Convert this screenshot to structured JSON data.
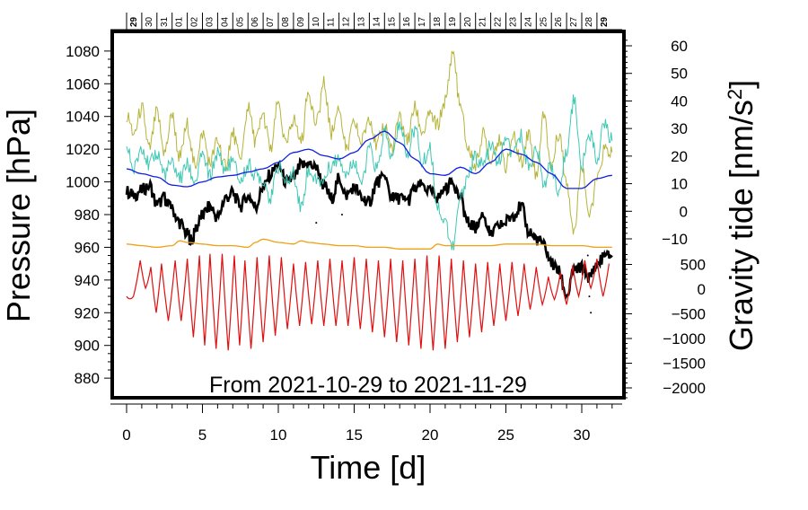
{
  "chart_data": {
    "type": "line",
    "title": "",
    "annotation": "From 2021-10-29 to 2021-11-29",
    "xlabel": "Time [d]",
    "ylabel_left": "Pressure [hPa]",
    "ylabel_right": "Gravity tide [nm/s2]",
    "ylabel_right_parts": {
      "base": "Gravity tide [nm/s",
      "sup": "2",
      "end": "]"
    },
    "xlim": [
      -1.0,
      33.0
    ],
    "ylim_left": [
      868,
      1092
    ],
    "x_ticks": [
      "0",
      "5",
      "10",
      "15",
      "20",
      "25",
      "30"
    ],
    "y_ticks_left": [
      "880",
      "900",
      "920",
      "940",
      "960",
      "980",
      "1000",
      "1020",
      "1040",
      "1060",
      "1080"
    ],
    "y_ticks_right_upper": [
      "-10",
      "0",
      "10",
      "20",
      "30",
      "40",
      "50",
      "60"
    ],
    "y_ticks_right_lower": [
      "-2000",
      "-1500",
      "-1000",
      "-500",
      "0",
      "500"
    ],
    "date_labels": [
      "29",
      "30",
      "31",
      "01",
      "02",
      "03",
      "04",
      "05",
      "06",
      "07",
      "08",
      "09",
      "10",
      "11",
      "12",
      "13",
      "14",
      "15",
      "16",
      "17",
      "18",
      "19",
      "20",
      "21",
      "22",
      "23",
      "24",
      "25",
      "26",
      "27",
      "28",
      "29"
    ],
    "series": [
      {
        "name": "pressure",
        "color": "#000000",
        "x": [
          0,
          0.5,
          1,
          1.5,
          2,
          2.5,
          3,
          3.5,
          4,
          4.3,
          4.6,
          5,
          5.5,
          6,
          6.5,
          7,
          7.5,
          8,
          8.5,
          9,
          9.5,
          10,
          10.5,
          11,
          11.5,
          12,
          12.5,
          13,
          13.5,
          14,
          14.5,
          15,
          15.5,
          16,
          16.5,
          17,
          17.5,
          18,
          18.5,
          19,
          19.5,
          20,
          20.5,
          21,
          21.5,
          22,
          22.5,
          23,
          23.5,
          24,
          24.5,
          25,
          25.5,
          26,
          26.5,
          27,
          27.5,
          28,
          28.5,
          29,
          29.5,
          30,
          30.5,
          31,
          31.5,
          32
        ],
        "values": [
          994,
          992,
          995,
          998,
          986,
          990,
          983,
          975,
          968,
          964,
          972,
          980,
          985,
          978,
          990,
          993,
          985,
          992,
          985,
          996,
          1005,
          1011,
          1000,
          1002,
          1010,
          1011,
          1008,
          998,
          990,
          1002,
          992,
          997,
          990,
          988,
          1000,
          1002,
          990,
          990,
          988,
          996,
          998,
          994,
          990,
          996,
          1000,
          990,
          975,
          972,
          980,
          968,
          972,
          976,
          980,
          985,
          970,
          965,
          962,
          950,
          945,
          930,
          945,
          948,
          942,
          950,
          954,
          955
        ]
      },
      {
        "name": "gravity-yellow",
        "color": "#b5b43a",
        "x": [
          0,
          0.5,
          1,
          1.5,
          2,
          2.5,
          3,
          3.5,
          4,
          4.5,
          5,
          5.5,
          6,
          6.5,
          7,
          7.5,
          8,
          8.5,
          9,
          9.5,
          10,
          10.5,
          11,
          11.5,
          12,
          12.5,
          13,
          13.5,
          14,
          14.5,
          15,
          15.5,
          16,
          16.5,
          17,
          17.5,
          18,
          18.5,
          19,
          19.5,
          20,
          20.5,
          21,
          21.5,
          22,
          22.5,
          23,
          23.5,
          24,
          24.5,
          25,
          25.5,
          26,
          26.5,
          27,
          27.5,
          28,
          28.5,
          29,
          29.5,
          30,
          30.5,
          31,
          31.5,
          32
        ],
        "values": [
          1040,
          1030,
          1045,
          1020,
          1042,
          1018,
          1040,
          1015,
          1035,
          1010,
          1030,
          1012,
          1025,
          1010,
          1030,
          1012,
          1045,
          1025,
          1040,
          1020,
          1048,
          1022,
          1038,
          1025,
          1055,
          1035,
          1060,
          1030,
          1045,
          1020,
          1035,
          1025,
          1040,
          1022,
          1035,
          1020,
          1040,
          1025,
          1045,
          1030,
          1040,
          1035,
          1050,
          1080,
          1045,
          1020,
          1010,
          1030,
          1015,
          1025,
          1010,
          1028,
          1012,
          1030,
          1005,
          1040,
          1010,
          1030,
          1000,
          970,
          1010,
          980,
          1000,
          1020,
          1018
        ]
      },
      {
        "name": "gravity-cyan",
        "color": "#40c8b4",
        "x": [
          0,
          0.5,
          1,
          1.5,
          2,
          2.5,
          3,
          3.5,
          4,
          4.5,
          5,
          5.5,
          6,
          6.5,
          7,
          7.5,
          8,
          8.5,
          9,
          9.5,
          10,
          10.5,
          11,
          11.5,
          12,
          12.5,
          13,
          13.5,
          14,
          14.5,
          15,
          15.5,
          16,
          16.5,
          17,
          17.5,
          18,
          18.5,
          19,
          19.5,
          20,
          20.5,
          21,
          21.5,
          22,
          22.5,
          23,
          23.5,
          24,
          24.5,
          25,
          25.5,
          26,
          26.5,
          27,
          27.5,
          28,
          28.5,
          29,
          29.5,
          30,
          30.5,
          31,
          31.5,
          32
        ],
        "values": [
          1020,
          1008,
          1022,
          1010,
          1018,
          1005,
          1012,
          1002,
          1010,
          1000,
          1015,
          1004,
          1018,
          1008,
          1012,
          1000,
          1010,
          1005,
          1002,
          990,
          1010,
          1000,
          1005,
          985,
          1008,
          1000,
          1002,
          1010,
          1015,
          1005,
          1012,
          1000,
          1020,
          1008,
          1030,
          1015,
          1035,
          1018,
          1032,
          1012,
          1020,
          985,
          975,
          960,
          990,
          1005,
          1015,
          1010,
          1022,
          1012,
          1025,
          1015,
          1028,
          1010,
          1020,
          1000,
          1010,
          990,
          1020,
          1050,
          1010,
          1030,
          1015,
          1035,
          1025
        ]
      },
      {
        "name": "gravity-blue",
        "color": "#1020e0",
        "x": [
          0,
          1,
          2,
          3,
          4,
          5,
          6,
          7,
          8,
          9,
          10,
          11,
          12,
          13,
          14,
          15,
          16,
          17,
          18,
          19,
          20,
          21,
          22,
          23,
          24,
          25,
          26,
          27,
          28,
          29,
          30,
          31,
          32
        ],
        "values": [
          1008,
          1005,
          1003,
          998,
          997,
          1000,
          1003,
          1004,
          1006,
          1008,
          1012,
          1018,
          1020,
          1016,
          1014,
          1018,
          1026,
          1031,
          1024,
          1014,
          1005,
          1004,
          1009,
          1005,
          1012,
          1020,
          1017,
          1012,
          1005,
          996,
          996,
          1002,
          1004
        ]
      },
      {
        "name": "gravity-orange",
        "color": "#f0a010",
        "x": [
          0,
          1,
          2,
          3,
          3.5,
          4,
          5,
          6,
          7,
          8,
          8.5,
          9,
          10,
          11,
          11.5,
          12,
          13,
          14,
          15,
          16,
          17,
          18,
          19,
          20,
          20.5,
          21,
          22,
          23,
          24,
          25,
          26,
          27,
          28,
          29,
          30,
          31,
          32
        ],
        "values": [
          962,
          961,
          960,
          961,
          964,
          963,
          962,
          961,
          961,
          960,
          963,
          965,
          963,
          962,
          964,
          963,
          962,
          961,
          961,
          960,
          960,
          959,
          959,
          959,
          962,
          961,
          961,
          961,
          961,
          962,
          962,
          962,
          961,
          961,
          961,
          960,
          960
        ]
      },
      {
        "name": "tide-red",
        "color": "#e01010",
        "peaks": [
          0,
          0.9,
          1.6,
          2.3,
          3.2,
          4.0,
          4.8,
          5.5,
          6.3,
          7.1,
          7.8,
          8.6,
          9.4,
          10.2,
          11.0,
          11.8,
          12.6,
          13.4,
          14.2,
          15.0,
          15.8,
          16.6,
          17.4,
          18.2,
          19.0,
          19.8,
          20.6,
          21.4,
          22.2,
          23.0,
          23.8,
          24.6,
          25.4,
          26.2,
          27.0,
          27.8,
          28.6,
          29.4,
          30.2,
          31.0,
          31.8
        ],
        "peak_values": [
          930,
          952,
          948,
          950,
          952,
          953,
          955,
          956,
          956,
          955,
          952,
          954,
          955,
          954,
          950,
          951,
          952,
          953,
          952,
          954,
          953,
          952,
          953,
          952,
          953,
          955,
          955,
          953,
          952,
          950,
          951,
          950,
          951,
          950,
          948,
          942,
          945,
          949,
          952,
          953,
          950
        ],
        "trough_values": [
          915,
          930,
          935,
          920,
          915,
          915,
          905,
          900,
          898,
          897,
          900,
          898,
          902,
          906,
          910,
          912,
          913,
          912,
          912,
          912,
          910,
          908,
          905,
          902,
          900,
          898,
          897,
          898,
          902,
          905,
          908,
          912,
          915,
          918,
          922,
          925,
          928,
          925,
          930,
          935,
          930
        ]
      }
    ]
  }
}
